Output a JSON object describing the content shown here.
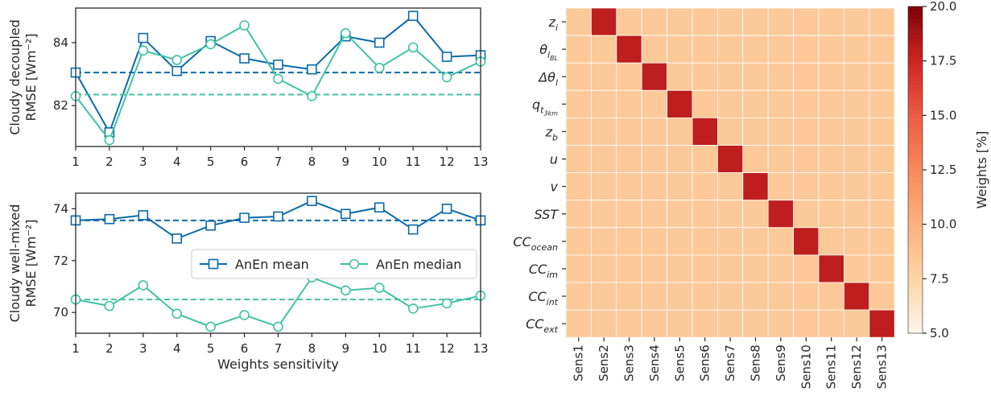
{
  "chart_data": [
    {
      "type": "line",
      "ylabel_lines": [
        "Cloudy decoupled",
        "RMSE [Wm⁻²]"
      ],
      "xlabel": "",
      "x": [
        1,
        2,
        3,
        4,
        5,
        6,
        7,
        8,
        9,
        10,
        11,
        12,
        13
      ],
      "xticks": [
        "1",
        "2",
        "3",
        "4",
        "5",
        "6",
        "7",
        "8",
        "9",
        "10",
        "11",
        "12",
        "13"
      ],
      "ylim": [
        80.7,
        85.1
      ],
      "yticks": [
        82,
        84
      ],
      "series": [
        {
          "name": "AnEn mean",
          "marker": "square",
          "color": "#0a6aa8",
          "mean_line": 83.05,
          "values": [
            83.05,
            81.15,
            84.15,
            83.1,
            84.05,
            83.5,
            83.3,
            83.15,
            84.2,
            84.0,
            84.85,
            83.55,
            83.6
          ]
        },
        {
          "name": "AnEn median",
          "marker": "circle",
          "color": "#40c2a6",
          "mean_line": 82.35,
          "values": [
            82.3,
            80.9,
            83.75,
            83.45,
            83.95,
            84.55,
            82.85,
            82.3,
            84.3,
            83.2,
            83.85,
            82.9,
            83.4
          ]
        }
      ]
    },
    {
      "type": "line",
      "ylabel_lines": [
        "Cloudy well-mixed",
        "RMSE [Wm⁻²]"
      ],
      "xlabel": "Weights sensitivity",
      "x": [
        1,
        2,
        3,
        4,
        5,
        6,
        7,
        8,
        9,
        10,
        11,
        12,
        13
      ],
      "xticks": [
        "1",
        "2",
        "3",
        "4",
        "5",
        "6",
        "7",
        "8",
        "9",
        "10",
        "11",
        "12",
        "13"
      ],
      "ylim": [
        69.2,
        74.6
      ],
      "yticks": [
        70,
        72,
        74
      ],
      "legend": [
        "AnEn mean",
        "AnEn median"
      ],
      "series": [
        {
          "name": "AnEn mean",
          "marker": "square",
          "color": "#0a6aa8",
          "mean_line": 73.55,
          "values": [
            73.55,
            73.6,
            73.75,
            72.85,
            73.35,
            73.65,
            73.7,
            74.3,
            73.8,
            74.05,
            73.2,
            74.0,
            73.55
          ]
        },
        {
          "name": "AnEn median",
          "marker": "circle",
          "color": "#40c2a6",
          "mean_line": 70.5,
          "values": [
            70.5,
            70.25,
            71.05,
            69.95,
            69.45,
            69.9,
            69.45,
            71.35,
            70.85,
            70.95,
            70.15,
            70.35,
            70.65
          ]
        }
      ]
    },
    {
      "type": "heatmap",
      "row_labels": [
        {
          "base": "z",
          "sub": "i"
        },
        {
          "base": "θ",
          "sub": "l_BL"
        },
        {
          "base": "Δθ",
          "sub": "l"
        },
        {
          "base": "q",
          "sub": "t_3km"
        },
        {
          "base": "z",
          "sub": "b"
        },
        {
          "base": "u",
          "sub": ""
        },
        {
          "base": "v",
          "sub": ""
        },
        {
          "base": "SST",
          "sub": ""
        },
        {
          "base": "CC",
          "sub": "ocean"
        },
        {
          "base": "CC",
          "sub": "im"
        },
        {
          "base": "CC",
          "sub": "int"
        },
        {
          "base": "CC",
          "sub": "ext"
        }
      ],
      "col_labels": [
        "Sens1",
        "Sens2",
        "Sens3",
        "Sens4",
        "Sens5",
        "Sens6",
        "Sens7",
        "Sens8",
        "Sens9",
        "Sens10",
        "Sens11",
        "Sens12",
        "Sens13"
      ],
      "base_value": 8.33,
      "high_value": 18.0,
      "high_cells": "row i, column i+1",
      "colorbar": {
        "label": "Weights [%]",
        "min": 5.0,
        "max": 20.0,
        "ticks": [
          "5.0",
          "7.5",
          "10.0",
          "12.5",
          "15.0",
          "17.5",
          "20.0"
        ]
      }
    }
  ]
}
